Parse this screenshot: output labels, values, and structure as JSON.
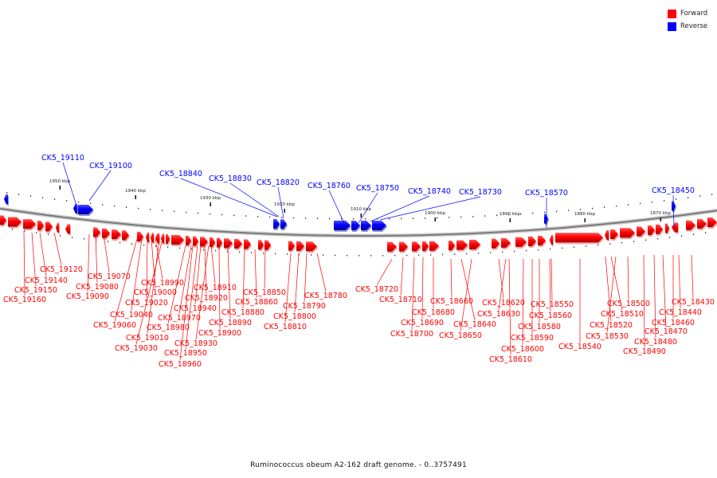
{
  "legend": {
    "forward_label": "Forward",
    "forward_color": "#ff0000",
    "reverse_label": "Reverse",
    "reverse_color": "#0000ff"
  },
  "caption": "Ruminococcus obeum A2-162 draft genome. - 0..3757491",
  "scale_labels": [
    "1950 kbp",
    "1940 kbp",
    "1930 kbp",
    "1920 kbp",
    "1910 kbp",
    "1900 kbp",
    "1890 kbp",
    "1880 kbp",
    "1870 kbp"
  ],
  "reverse_genes": [
    "CK5_19110",
    "CK5_19100",
    "CK5_18840",
    "CK5_18830",
    "CK5_18820",
    "CK5_18760",
    "CK5_18750",
    "CK5_18740",
    "CK5_18730",
    "CK5_18570",
    "CK5_18450"
  ],
  "forward_genes": [
    "CK5_19120",
    "CK5_19140",
    "CK5_19150",
    "CK5_19160",
    "CK5_19070",
    "CK5_19080",
    "CK5_19090",
    "CK5_18990",
    "CK5_19000",
    "CK5_19020",
    "CK5_19040",
    "CK5_19060",
    "CK5_19010",
    "CK5_19030",
    "CK5_18910",
    "CK5_18920",
    "CK5_18940",
    "CK5_18970",
    "CK5_18980",
    "CK5_18930",
    "CK5_18950",
    "CK5_18960",
    "CK5_18890",
    "CK5_18900",
    "CK5_18850",
    "CK5_18860",
    "CK5_18880",
    "CK5_18780",
    "CK5_18790",
    "CK5_18800",
    "CK5_18810",
    "CK5_18720",
    "CK5_18710",
    "CK5_18680",
    "CK5_18690",
    "CK5_18700",
    "CK5_18660",
    "CK5_18640",
    "CK5_18650",
    "CK5_18620",
    "CK5_18630",
    "CK5_18550",
    "CK5_18560",
    "CK5_18580",
    "CK5_18590",
    "CK5_18600",
    "CK5_18610",
    "CK5_18540",
    "CK5_18500",
    "CK5_18510",
    "CK5_18520",
    "CK5_18530",
    "CK5_18430",
    "CK5_18440",
    "CK5_18460",
    "CK5_18470",
    "CK5_18480",
    "CK5_18490"
  ]
}
